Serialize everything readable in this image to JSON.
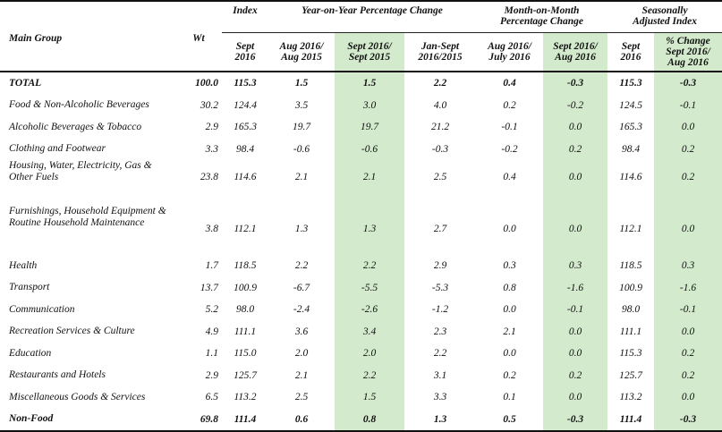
{
  "header": {
    "main_group": "Main Group",
    "wt": "Wt",
    "index": "Index",
    "yoy": "Year-on-Year Percentage Change",
    "mom": "Month-on-Month Percentage Change",
    "sa": "Seasonally Adjusted Index",
    "sub": {
      "index_sept": "Sept 2016",
      "yoy_aug": "Aug 2016/ Aug 2015",
      "yoy_sept": "Sept 2016/ Sept 2015",
      "yoy_jan": "Jan-Sept 2016/2015",
      "mom_aug": "Aug 2016/ July 2016",
      "mom_sept": "Sept 2016/ Aug 2016",
      "sa_sept": "Sept 2016",
      "sa_change": "% Change Sept 2016/ Aug 2016"
    }
  },
  "rows": [
    {
      "name": "TOTAL",
      "wt": "100.0",
      "idx": "115.3",
      "yoy_aug": "1.5",
      "yoy_sept": "1.5",
      "yoy_jan": "2.2",
      "mom_aug": "0.4",
      "mom_sept": "-0.3",
      "sa": "115.3",
      "sa_chg": "-0.3"
    },
    {
      "name": "Food & Non-Alcoholic Beverages",
      "wt": "30.2",
      "idx": "124.4",
      "yoy_aug": "3.5",
      "yoy_sept": "3.0",
      "yoy_jan": "4.0",
      "mom_aug": "0.2",
      "mom_sept": "-0.2",
      "sa": "124.5",
      "sa_chg": "-0.1"
    },
    {
      "name": "Alcoholic Beverages & Tobacco",
      "wt": "2.9",
      "idx": "165.3",
      "yoy_aug": "19.7",
      "yoy_sept": "19.7",
      "yoy_jan": "21.2",
      "mom_aug": "-0.1",
      "mom_sept": "0.0",
      "sa": "165.3",
      "sa_chg": "0.0"
    },
    {
      "name": "Clothing and Footwear",
      "wt": "3.3",
      "idx": "98.4",
      "yoy_aug": "-0.6",
      "yoy_sept": "-0.6",
      "yoy_jan": "-0.3",
      "mom_aug": "-0.2",
      "mom_sept": "0.2",
      "sa": "98.4",
      "sa_chg": "0.2"
    },
    {
      "name": "Housing, Water, Electricity, Gas & Other Fuels",
      "wt": "23.8",
      "idx": "114.6",
      "yoy_aug": "2.1",
      "yoy_sept": "2.1",
      "yoy_jan": "2.5",
      "mom_aug": "0.4",
      "mom_sept": "0.0",
      "sa": "114.6",
      "sa_chg": "0.2"
    },
    {
      "name": "Furnishings, Household Equipment  & Routine Household Maintenance",
      "wt": "3.8",
      "idx": "112.1",
      "yoy_aug": "1.3",
      "yoy_sept": "1.3",
      "yoy_jan": "2.7",
      "mom_aug": "0.0",
      "mom_sept": "0.0",
      "sa": "112.1",
      "sa_chg": "0.0"
    },
    {
      "name": "Health",
      "wt": "1.7",
      "idx": "118.5",
      "yoy_aug": "2.2",
      "yoy_sept": "2.2",
      "yoy_jan": "2.9",
      "mom_aug": "0.3",
      "mom_sept": "0.3",
      "sa": "118.5",
      "sa_chg": "0.3"
    },
    {
      "name": "Transport",
      "wt": "13.7",
      "idx": "100.9",
      "yoy_aug": "-6.7",
      "yoy_sept": "-5.5",
      "yoy_jan": "-5.3",
      "mom_aug": "0.8",
      "mom_sept": "-1.6",
      "sa": "100.9",
      "sa_chg": "-1.6"
    },
    {
      "name": "Communication",
      "wt": "5.2",
      "idx": "98.0",
      "yoy_aug": "-2.4",
      "yoy_sept": "-2.6",
      "yoy_jan": "-1.2",
      "mom_aug": "0.0",
      "mom_sept": "-0.1",
      "sa": "98.0",
      "sa_chg": "-0.1"
    },
    {
      "name": "Recreation Services & Culture",
      "wt": "4.9",
      "idx": "111.1",
      "yoy_aug": "3.6",
      "yoy_sept": "3.4",
      "yoy_jan": "2.3",
      "mom_aug": "2.1",
      "mom_sept": "0.0",
      "sa": "111.1",
      "sa_chg": "0.0"
    },
    {
      "name": "Education",
      "wt": "1.1",
      "idx": "115.0",
      "yoy_aug": "2.0",
      "yoy_sept": "2.0",
      "yoy_jan": "2.2",
      "mom_aug": "0.0",
      "mom_sept": "0.0",
      "sa": "115.3",
      "sa_chg": "0.2"
    },
    {
      "name": "Restaurants and Hotels",
      "wt": "2.9",
      "idx": "125.7",
      "yoy_aug": "2.1",
      "yoy_sept": "2.2",
      "yoy_jan": "3.1",
      "mom_aug": "0.2",
      "mom_sept": "0.2",
      "sa": "125.7",
      "sa_chg": "0.2"
    },
    {
      "name": "Miscellaneous Goods & Services",
      "wt": "6.5",
      "idx": "113.2",
      "yoy_aug": "2.5",
      "yoy_sept": "1.5",
      "yoy_jan": "3.3",
      "mom_aug": "0.1",
      "mom_sept": "0.0",
      "sa": "113.2",
      "sa_chg": "0.0"
    },
    {
      "name": "Non-Food",
      "wt": "69.8",
      "idx": "111.4",
      "yoy_aug": "0.6",
      "yoy_sept": "0.8",
      "yoy_jan": "1.3",
      "mom_aug": "0.5",
      "mom_sept": "-0.3",
      "sa": "111.4",
      "sa_chg": "-0.3"
    }
  ],
  "colors": {
    "highlight": "#d3ebcc",
    "rule": "#111111"
  }
}
